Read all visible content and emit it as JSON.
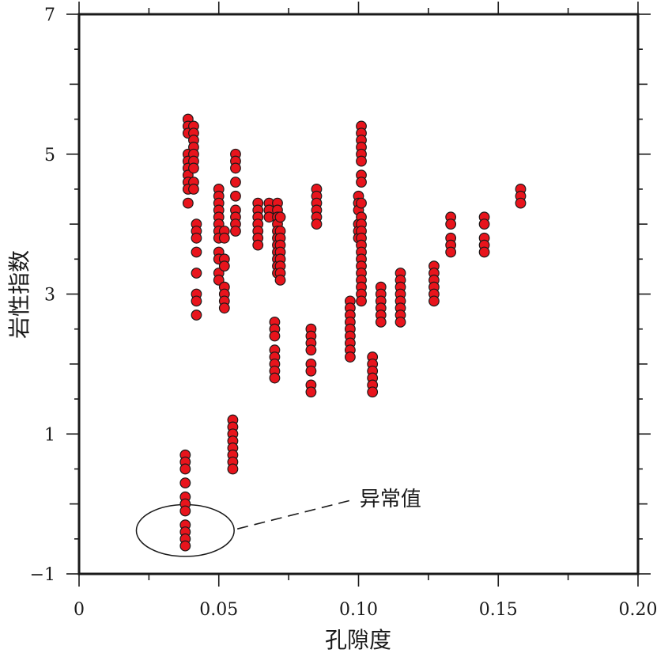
{
  "chart_data": {
    "type": "scatter",
    "xlabel": "孔隙度",
    "ylabel": "岩性指数",
    "xlim": [
      0,
      0.2
    ],
    "ylim": [
      -1,
      7
    ],
    "grid": false,
    "legend": "none",
    "x_ticks": [
      {
        "value": 0,
        "label": "0"
      },
      {
        "value": 0.05,
        "label": "0.05"
      },
      {
        "value": 0.1,
        "label": "0.10"
      },
      {
        "value": 0.15,
        "label": "0.15"
      },
      {
        "value": 0.2,
        "label": "0.20"
      }
    ],
    "y_ticks": [
      {
        "value": -1,
        "label": "−1"
      },
      {
        "value": 1,
        "label": "1"
      },
      {
        "value": 3,
        "label": "3"
      },
      {
        "value": 5,
        "label": "5"
      },
      {
        "value": 7,
        "label": "7"
      }
    ],
    "marker_color": "#e8141c",
    "marker_edge": "#1a1a1a",
    "annotation": {
      "text": "异常值",
      "ellipse_center": [
        0.038,
        -0.38
      ],
      "ellipse_radius": [
        0.0175,
        0.37
      ],
      "leader_end": [
        0.097,
        0.05
      ]
    },
    "series": [
      {
        "points": [
          [
            0.038,
            0.7
          ],
          [
            0.038,
            0.6
          ],
          [
            0.038,
            0.5
          ],
          [
            0.038,
            0.3
          ],
          [
            0.038,
            0.1
          ],
          [
            0.038,
            0.0
          ],
          [
            0.038,
            -0.1
          ],
          [
            0.038,
            -0.3
          ],
          [
            0.038,
            -0.4
          ],
          [
            0.038,
            -0.5
          ],
          [
            0.038,
            -0.6
          ],
          [
            0.039,
            5.5
          ],
          [
            0.039,
            5.4
          ],
          [
            0.039,
            5.3
          ],
          [
            0.039,
            5.0
          ],
          [
            0.039,
            4.9
          ],
          [
            0.039,
            4.8
          ],
          [
            0.039,
            4.7
          ],
          [
            0.039,
            4.6
          ],
          [
            0.039,
            4.5
          ],
          [
            0.039,
            4.3
          ],
          [
            0.041,
            5.4
          ],
          [
            0.041,
            5.3
          ],
          [
            0.041,
            5.2
          ],
          [
            0.041,
            5.1
          ],
          [
            0.041,
            5.0
          ],
          [
            0.041,
            4.9
          ],
          [
            0.041,
            4.8
          ],
          [
            0.041,
            4.6
          ],
          [
            0.041,
            4.5
          ],
          [
            0.042,
            4.0
          ],
          [
            0.042,
            3.9
          ],
          [
            0.042,
            3.8
          ],
          [
            0.042,
            3.6
          ],
          [
            0.042,
            3.3
          ],
          [
            0.042,
            3.0
          ],
          [
            0.042,
            2.9
          ],
          [
            0.042,
            2.7
          ],
          [
            0.05,
            4.5
          ],
          [
            0.05,
            4.4
          ],
          [
            0.05,
            4.3
          ],
          [
            0.05,
            4.2
          ],
          [
            0.05,
            4.1
          ],
          [
            0.05,
            4.0
          ],
          [
            0.05,
            3.9
          ],
          [
            0.05,
            3.8
          ],
          [
            0.05,
            3.6
          ],
          [
            0.05,
            3.5
          ],
          [
            0.05,
            3.3
          ],
          [
            0.05,
            3.2
          ],
          [
            0.052,
            3.9
          ],
          [
            0.052,
            3.8
          ],
          [
            0.052,
            3.5
          ],
          [
            0.052,
            3.4
          ],
          [
            0.052,
            3.1
          ],
          [
            0.052,
            3.0
          ],
          [
            0.052,
            2.9
          ],
          [
            0.052,
            2.8
          ],
          [
            0.056,
            5.0
          ],
          [
            0.056,
            4.9
          ],
          [
            0.056,
            4.8
          ],
          [
            0.056,
            4.6
          ],
          [
            0.056,
            4.4
          ],
          [
            0.056,
            4.2
          ],
          [
            0.056,
            4.1
          ],
          [
            0.056,
            4.0
          ],
          [
            0.056,
            3.9
          ],
          [
            0.055,
            1.2
          ],
          [
            0.055,
            1.1
          ],
          [
            0.055,
            1.0
          ],
          [
            0.055,
            0.9
          ],
          [
            0.055,
            0.8
          ],
          [
            0.055,
            0.7
          ],
          [
            0.055,
            0.6
          ],
          [
            0.055,
            0.5
          ],
          [
            0.064,
            4.3
          ],
          [
            0.064,
            4.2
          ],
          [
            0.064,
            4.1
          ],
          [
            0.064,
            4.0
          ],
          [
            0.064,
            3.9
          ],
          [
            0.064,
            3.8
          ],
          [
            0.064,
            3.7
          ],
          [
            0.068,
            4.3
          ],
          [
            0.068,
            4.2
          ],
          [
            0.068,
            4.1
          ],
          [
            0.071,
            4.3
          ],
          [
            0.071,
            4.2
          ],
          [
            0.071,
            4.1
          ],
          [
            0.071,
            4.0
          ],
          [
            0.071,
            3.9
          ],
          [
            0.071,
            3.8
          ],
          [
            0.071,
            3.7
          ],
          [
            0.071,
            3.6
          ],
          [
            0.071,
            3.5
          ],
          [
            0.071,
            3.4
          ],
          [
            0.071,
            3.3
          ],
          [
            0.072,
            4.1
          ],
          [
            0.072,
            3.9
          ],
          [
            0.072,
            3.8
          ],
          [
            0.072,
            3.7
          ],
          [
            0.072,
            3.6
          ],
          [
            0.072,
            3.5
          ],
          [
            0.072,
            3.4
          ],
          [
            0.072,
            3.3
          ],
          [
            0.072,
            3.2
          ],
          [
            0.07,
            2.6
          ],
          [
            0.07,
            2.5
          ],
          [
            0.07,
            2.4
          ],
          [
            0.07,
            2.2
          ],
          [
            0.07,
            2.1
          ],
          [
            0.07,
            2.0
          ],
          [
            0.07,
            1.9
          ],
          [
            0.07,
            1.8
          ],
          [
            0.083,
            2.5
          ],
          [
            0.083,
            2.4
          ],
          [
            0.083,
            2.3
          ],
          [
            0.083,
            2.2
          ],
          [
            0.083,
            2.0
          ],
          [
            0.083,
            1.9
          ],
          [
            0.083,
            1.7
          ],
          [
            0.083,
            1.6
          ],
          [
            0.085,
            4.5
          ],
          [
            0.085,
            4.4
          ],
          [
            0.085,
            4.3
          ],
          [
            0.085,
            4.2
          ],
          [
            0.085,
            4.1
          ],
          [
            0.085,
            4.0
          ],
          [
            0.097,
            2.9
          ],
          [
            0.097,
            2.8
          ],
          [
            0.097,
            2.7
          ],
          [
            0.097,
            2.6
          ],
          [
            0.097,
            2.5
          ],
          [
            0.097,
            2.4
          ],
          [
            0.097,
            2.3
          ],
          [
            0.097,
            2.2
          ],
          [
            0.097,
            2.1
          ],
          [
            0.1,
            4.4
          ],
          [
            0.1,
            4.3
          ],
          [
            0.1,
            4.2
          ],
          [
            0.1,
            4.0
          ],
          [
            0.1,
            3.9
          ],
          [
            0.1,
            3.8
          ],
          [
            0.101,
            5.4
          ],
          [
            0.101,
            5.3
          ],
          [
            0.101,
            5.2
          ],
          [
            0.101,
            5.1
          ],
          [
            0.101,
            5.0
          ],
          [
            0.101,
            4.9
          ],
          [
            0.101,
            4.7
          ],
          [
            0.101,
            4.6
          ],
          [
            0.101,
            4.3
          ],
          [
            0.101,
            4.1
          ],
          [
            0.101,
            4.0
          ],
          [
            0.101,
            3.9
          ],
          [
            0.101,
            3.8
          ],
          [
            0.101,
            3.7
          ],
          [
            0.101,
            3.6
          ],
          [
            0.101,
            3.5
          ],
          [
            0.101,
            3.4
          ],
          [
            0.101,
            3.3
          ],
          [
            0.101,
            3.2
          ],
          [
            0.101,
            3.1
          ],
          [
            0.101,
            3.0
          ],
          [
            0.101,
            2.9
          ],
          [
            0.105,
            2.1
          ],
          [
            0.105,
            2.0
          ],
          [
            0.105,
            1.9
          ],
          [
            0.105,
            1.8
          ],
          [
            0.105,
            1.7
          ],
          [
            0.105,
            1.6
          ],
          [
            0.108,
            3.1
          ],
          [
            0.108,
            3.0
          ],
          [
            0.108,
            2.9
          ],
          [
            0.108,
            2.8
          ],
          [
            0.108,
            2.7
          ],
          [
            0.108,
            2.6
          ],
          [
            0.115,
            3.3
          ],
          [
            0.115,
            3.2
          ],
          [
            0.115,
            3.1
          ],
          [
            0.115,
            3.0
          ],
          [
            0.115,
            2.9
          ],
          [
            0.115,
            2.8
          ],
          [
            0.115,
            2.7
          ],
          [
            0.115,
            2.6
          ],
          [
            0.127,
            3.4
          ],
          [
            0.127,
            3.3
          ],
          [
            0.127,
            3.2
          ],
          [
            0.127,
            3.1
          ],
          [
            0.127,
            3.0
          ],
          [
            0.127,
            2.9
          ],
          [
            0.133,
            4.1
          ],
          [
            0.133,
            4.0
          ],
          [
            0.133,
            3.8
          ],
          [
            0.133,
            3.7
          ],
          [
            0.133,
            3.6
          ],
          [
            0.145,
            4.1
          ],
          [
            0.145,
            4.0
          ],
          [
            0.145,
            3.8
          ],
          [
            0.145,
            3.7
          ],
          [
            0.145,
            3.6
          ],
          [
            0.158,
            4.5
          ],
          [
            0.158,
            4.4
          ],
          [
            0.158,
            4.3
          ]
        ]
      }
    ]
  }
}
